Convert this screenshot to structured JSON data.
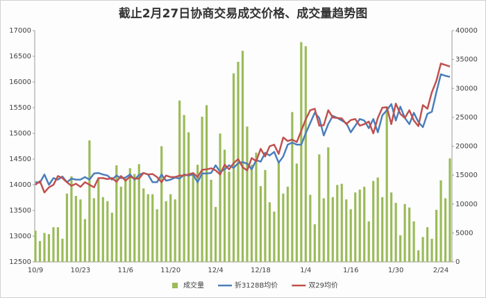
{
  "chart_data": {
    "type": "bar-line",
    "title": "截止2月27日协商交易成交价格、成交量趋势图",
    "categories": [
      "10/9",
      null,
      null,
      null,
      null,
      null,
      null,
      null,
      null,
      null,
      "10/23",
      null,
      null,
      null,
      null,
      null,
      null,
      null,
      null,
      null,
      "11/6",
      null,
      null,
      null,
      null,
      null,
      null,
      null,
      null,
      null,
      "11/20",
      null,
      null,
      null,
      null,
      null,
      null,
      null,
      null,
      null,
      "12/4",
      null,
      null,
      null,
      null,
      null,
      null,
      null,
      null,
      null,
      "12/18",
      null,
      null,
      null,
      null,
      null,
      null,
      null,
      null,
      null,
      "1/4",
      null,
      null,
      null,
      null,
      null,
      null,
      null,
      null,
      null,
      "1/16",
      null,
      null,
      null,
      null,
      null,
      null,
      null,
      null,
      null,
      "1/30",
      null,
      null,
      null,
      null,
      null,
      null,
      null,
      null,
      null,
      "2/24",
      null,
      null
    ],
    "series": [
      {
        "name": "成交量",
        "color": "#9bbb59",
        "axis": "y2",
        "kind": "bar",
        "values": [
          5400,
          3600,
          5000,
          4800,
          6000,
          6000,
          4000,
          11800,
          14800,
          11400,
          10800,
          7400,
          21000,
          11000,
          14300,
          11200,
          10500,
          8500,
          16700,
          13000,
          14400,
          16200,
          15200,
          16900,
          12700,
          11700,
          11700,
          9100,
          20000,
          10500,
          11700,
          10800,
          27900,
          25400,
          22400,
          15400,
          16800,
          25100,
          27100,
          14200,
          9500,
          22200,
          19400,
          15600,
          32600,
          34600,
          36500,
          23400,
          16800,
          18900,
          13100,
          15900,
          10300,
          8700,
          17300,
          11800,
          13000,
          25900,
          17000,
          38000,
          37300,
          11600,
          6500,
          18600,
          11000,
          19800,
          11200,
          13300,
          13500,
          10800,
          9100,
          12000,
          12500,
          13000,
          7000,
          14000,
          14600,
          11200,
          26800,
          12000,
          10200,
          4600,
          10000,
          9400,
          7000,
          2000,
          4300,
          6000,
          4000,
          9000,
          14100,
          11000,
          17900
        ]
      },
      {
        "name": "折3128B均价",
        "color": "#4a7ebb",
        "kind": "line",
        "values": [
          14050,
          14040,
          14200,
          14000,
          14130,
          14100,
          14160,
          14050,
          14120,
          14100,
          14100,
          14150,
          14100,
          14220,
          14230,
          14200,
          14180,
          14100,
          14180,
          14130,
          14140,
          14200,
          14100,
          14190,
          14230,
          14200,
          14050,
          14050,
          14200,
          14080,
          14100,
          14140,
          14120,
          14200,
          14180,
          14200,
          14050,
          14220,
          14220,
          14230,
          14380,
          14250,
          14300,
          14380,
          14330,
          14420,
          14440,
          14410,
          14300,
          14480,
          14450,
          14620,
          14570,
          14640,
          14430,
          14550,
          14780,
          14820,
          14780,
          14780,
          15000,
          15200,
          15400,
          15300,
          14960,
          15180,
          15340,
          15300,
          15250,
          15200,
          15020,
          15150,
          15280,
          15250,
          15100,
          15280,
          15020,
          15350,
          15450,
          15570,
          15250,
          15520,
          15300,
          15180,
          15400,
          15220,
          15120,
          15380,
          15420,
          15800,
          16150,
          16120,
          16100
        ]
      },
      {
        "name": "双29均价",
        "color": "#c0504d",
        "kind": "line",
        "values": [
          14000,
          14070,
          13850,
          13950,
          14000,
          14170,
          14130,
          14050,
          13980,
          14020,
          13960,
          14050,
          14000,
          13950,
          14130,
          14130,
          14110,
          14130,
          14060,
          14170,
          14080,
          14160,
          14120,
          14120,
          14230,
          14200,
          14210,
          14150,
          14050,
          14180,
          14150,
          14150,
          14180,
          14180,
          14200,
          14230,
          14150,
          14290,
          14300,
          14320,
          14280,
          14200,
          14390,
          14300,
          14420,
          14500,
          14340,
          14280,
          14520,
          14460,
          14700,
          14550,
          14750,
          14780,
          14600,
          14920,
          14850,
          14880,
          14830,
          15050,
          15270,
          15450,
          15480,
          15150,
          15160,
          15450,
          15310,
          15300,
          15290,
          15180,
          15260,
          15280,
          15150,
          15180,
          15230,
          15000,
          15300,
          15500,
          15510,
          15180,
          15580,
          15380,
          15300,
          15450,
          15250,
          15140,
          15550,
          15480,
          15800,
          16020,
          16360,
          16330,
          16300
        ]
      }
    ],
    "ylim": [
      12500,
      17000
    ],
    "yticks": [
      12500,
      13000,
      13500,
      14000,
      14500,
      15000,
      15500,
      16000,
      16500,
      17000
    ],
    "y2lim": [
      0,
      40000
    ],
    "y2ticks": [
      0,
      5000,
      10000,
      15000,
      20000,
      25000,
      30000,
      35000,
      40000
    ],
    "legend": "bottom"
  }
}
